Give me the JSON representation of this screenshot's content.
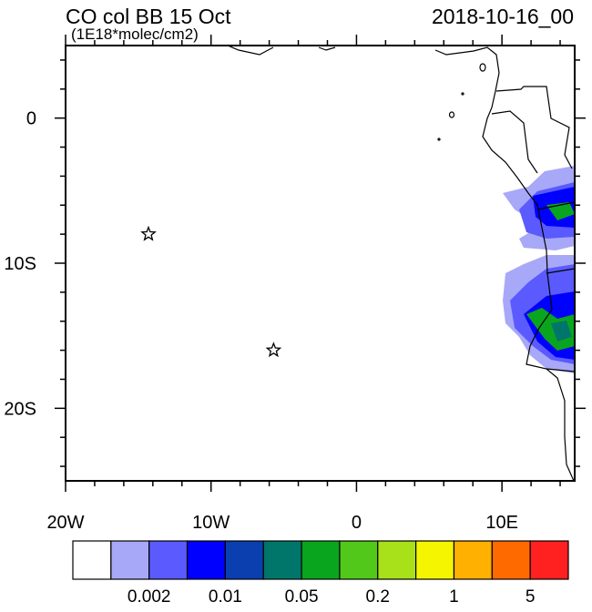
{
  "header": {
    "title": "CO col BB 15 Oct",
    "subtitle": "(1E18*molec/cm2)",
    "date": "2018-10-16_00"
  },
  "map": {
    "lonlim": [
      -20,
      15
    ],
    "latlim": [
      -25,
      5
    ],
    "xticks": [
      {
        "value": -20,
        "label": "20W"
      },
      {
        "value": -10,
        "label": "10W"
      },
      0,
      {
        "value": 10,
        "label": "10E"
      }
    ],
    "yticks": [
      0,
      {
        "value": -10,
        "label": "10S"
      },
      {
        "value": -20,
        "label": "20S"
      }
    ],
    "xminor": [
      -18,
      -16,
      -14,
      -12,
      -8,
      -6,
      -4,
      -2,
      2,
      4,
      6,
      8,
      12,
      14
    ],
    "yminor": [
      4,
      2,
      -2,
      -4,
      -6,
      -8,
      -12,
      -14,
      -16,
      -18,
      -22,
      -24
    ],
    "markers": [
      {
        "lon": -14.3,
        "lat": -8
      },
      {
        "lon": -5.7,
        "lat": -16
      }
    ]
  },
  "colorbar": {
    "colors": [
      "#ffffff",
      "#a8a8f8",
      "#5a5aff",
      "#0000ff",
      "#0b3fb0",
      "#00766a",
      "#0aa51e",
      "#52c81a",
      "#a8e01a",
      "#f5f500",
      "#ffb000",
      "#ff6a00",
      "#ff2020"
    ],
    "levels": [
      null,
      0.002,
      null,
      0.01,
      null,
      0.05,
      null,
      0.2,
      null,
      1,
      null,
      5
    ]
  }
}
